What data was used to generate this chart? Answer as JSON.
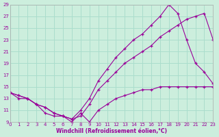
{
  "xlabel": "Windchill (Refroidissement éolien,°C)",
  "bg_color": "#cceedd",
  "line_color": "#990099",
  "grid_color": "#aaddcc",
  "xmin": 0,
  "xmax": 23,
  "ymin": 9,
  "ymax": 29,
  "yticks": [
    9,
    11,
    13,
    15,
    17,
    19,
    21,
    23,
    25,
    27,
    29
  ],
  "xticks": [
    0,
    1,
    2,
    3,
    4,
    5,
    6,
    7,
    8,
    9,
    10,
    11,
    12,
    13,
    14,
    15,
    16,
    17,
    18,
    19,
    20,
    21,
    22,
    23
  ],
  "curve1_x": [
    0,
    1,
    2,
    3,
    4,
    5,
    6,
    7,
    8,
    9,
    10,
    11,
    12,
    13,
    14,
    15,
    16,
    17,
    18,
    19,
    20,
    21,
    22,
    23
  ],
  "curve1_y": [
    14,
    13.5,
    13,
    12,
    11.5,
    10.5,
    10,
    9.5,
    11,
    13,
    16,
    18,
    20,
    21.5,
    23,
    24,
    25.5,
    27,
    29,
    27.5,
    23,
    19,
    17.5,
    15.5
  ],
  "curve2_x": [
    0,
    1,
    2,
    3,
    4,
    5,
    6,
    7,
    8,
    9,
    10,
    11,
    12,
    13,
    14,
    15,
    16,
    17,
    18,
    19,
    20,
    21,
    22,
    23
  ],
  "curve2_y": [
    14,
    13.5,
    13,
    12,
    11.5,
    10.5,
    10,
    9.5,
    10,
    12,
    14.5,
    16,
    17.5,
    19,
    20,
    21,
    22,
    23.5,
    24.5,
    25.5,
    26.5,
    27,
    27.5,
    23
  ],
  "curve3_x": [
    0,
    1,
    2,
    3,
    4,
    5,
    6,
    7,
    8,
    9,
    10,
    11,
    12,
    13,
    14,
    15,
    16,
    17,
    18,
    19,
    20,
    21,
    22,
    23
  ],
  "curve3_y": [
    14,
    13,
    13,
    12,
    10.5,
    10,
    10,
    9,
    10.5,
    9,
    11,
    12,
    13,
    13.5,
    14,
    14.5,
    14.5,
    15,
    15,
    15,
    15,
    15,
    15,
    15
  ]
}
